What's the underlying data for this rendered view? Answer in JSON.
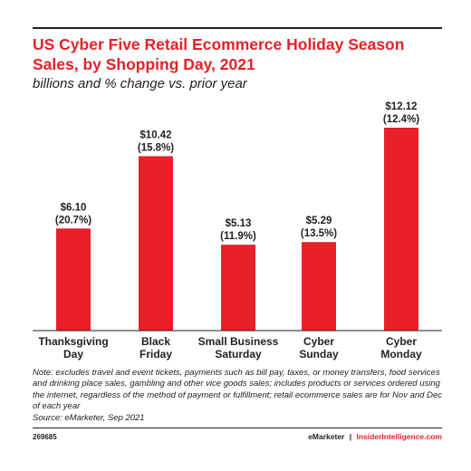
{
  "title": "US Cyber Five Retail Ecommerce Holiday Season Sales, by Shopping Day, 2021",
  "subtitle": "billions and % change vs. prior year",
  "colors": {
    "bar": "#e7202a",
    "title": "#e7202a",
    "text": "#222222"
  },
  "chart_data": {
    "type": "bar",
    "categories": [
      [
        "Thanksgiving",
        "Day"
      ],
      [
        "Black",
        "Friday"
      ],
      [
        "Small Business",
        "Saturday"
      ],
      [
        "Cyber",
        "Sunday"
      ],
      [
        "Cyber",
        "Monday"
      ]
    ],
    "values": [
      6.1,
      10.42,
      5.13,
      5.29,
      12.12
    ],
    "value_labels": [
      "$6.10",
      "$10.42",
      "$5.13",
      "$5.29",
      "$12.12"
    ],
    "change_labels": [
      "(20.7%)",
      "(15.8%)",
      "(11.9%)",
      "(13.5%)",
      "(12.4%)"
    ],
    "ylim": [
      0,
      12.12
    ],
    "grid": false
  },
  "note": "Note: excludes travel and event tickets, payments such as bill pay, taxes, or money transfers, food services and drinking place sales, gambling and other vice goods sales; includes products or services ordered using the internet, regardless of the method of payment or fulfillment; retail ecommerce sales are for Nov and Dec of each year",
  "source": "Source: eMarketer, Sep 2021",
  "chart_id": "269685",
  "branding": {
    "emarketer": "eMarketer",
    "separator": "|",
    "insider": "InsiderIntelligence.com"
  }
}
